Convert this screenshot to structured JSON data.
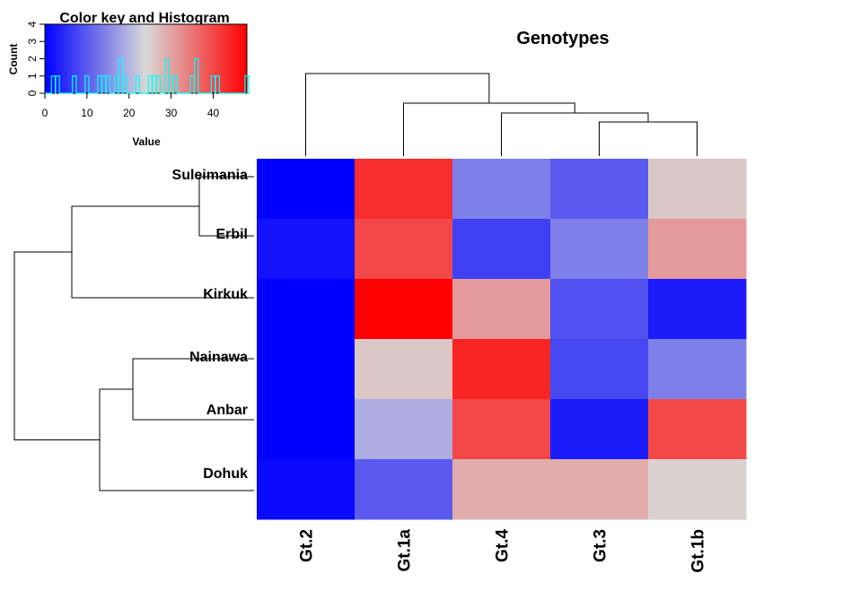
{
  "chart_data": {
    "type": "heatmap",
    "title": "Genotypes",
    "rows": [
      "Suleimania",
      "Erbil",
      "Kirkuk",
      "Nainawa",
      "Anbar",
      "Dohuk"
    ],
    "columns": [
      "Gt.2",
      "Gt.1a",
      "Gt.4",
      "Gt.3",
      "Gt.1b"
    ],
    "values": [
      [
        0,
        43,
        14,
        10,
        26
      ],
      [
        2,
        40,
        7,
        14,
        31
      ],
      [
        0,
        48,
        31,
        9,
        3
      ],
      [
        0,
        26,
        44,
        8,
        14
      ],
      [
        0,
        19,
        40,
        3,
        40
      ],
      [
        1,
        10,
        29,
        29,
        25
      ]
    ],
    "color_range": [
      0,
      48
    ],
    "colors": {
      "low": "#0000ff",
      "mid": "#d9d9d9",
      "high": "#ff0000",
      "histogram": "#00ffff"
    },
    "color_key": {
      "title": "Color key and Histogram",
      "xlabel": "Value",
      "ylabel": "Count",
      "x_ticks": [
        0,
        10,
        20,
        30,
        40
      ],
      "y_ticks": [
        0,
        1,
        2,
        3,
        4
      ],
      "histogram_bins": [
        [
          2,
          1
        ],
        [
          3,
          1
        ],
        [
          7,
          1
        ],
        [
          10,
          1
        ],
        [
          13,
          1
        ],
        [
          14,
          1
        ],
        [
          15,
          1
        ],
        [
          17,
          1
        ],
        [
          18,
          2
        ],
        [
          19,
          1
        ],
        [
          22,
          1
        ],
        [
          25,
          1
        ],
        [
          26,
          1
        ],
        [
          27,
          1
        ],
        [
          29,
          2
        ],
        [
          30,
          1
        ],
        [
          31,
          1
        ],
        [
          35,
          1
        ],
        [
          36,
          2
        ],
        [
          40,
          1
        ],
        [
          41,
          1
        ],
        [
          48,
          1
        ]
      ]
    },
    "col_dendrogram": {
      "order": [
        "Gt.2",
        "Gt.1a",
        "Gt.4",
        "Gt.3",
        "Gt.1b"
      ]
    },
    "row_dendrogram": {
      "order": [
        "Suleimania",
        "Erbil",
        "Kirkuk",
        "Nainawa",
        "Anbar",
        "Dohuk"
      ]
    }
  }
}
